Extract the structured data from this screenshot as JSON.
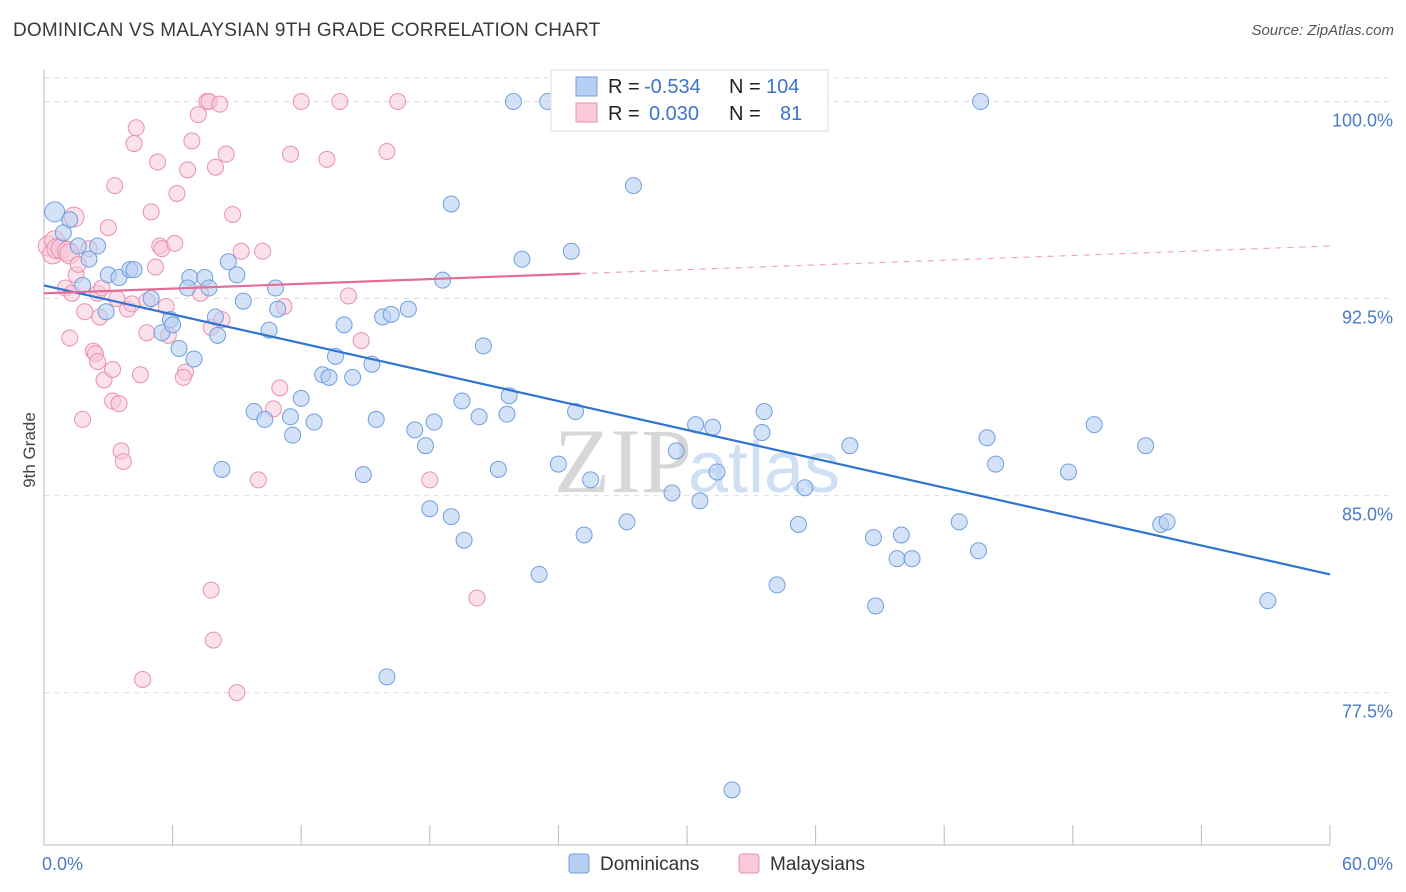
{
  "title": "DOMINICAN VS MALAYSIAN 9TH GRADE CORRELATION CHART",
  "source": "Source: ZipAtlas.com",
  "watermark": {
    "zip": "ZIP",
    "atlas": "atlas"
  },
  "colors": {
    "blue": "#6f9fe0",
    "blue_fill": "#b7cff2",
    "blue_line": "#2f74d0",
    "pink": "#ec8fb0",
    "pink_fill": "#f8c9d9",
    "pink_line": "#e56b98",
    "grid": "#dddddd",
    "axis_text": "#4a7cc8"
  },
  "legend_box": {
    "row1": {
      "r_label": "R =",
      "r_value": "-0.534",
      "n_label": "N =",
      "n_value": "104"
    },
    "row2": {
      "r_label": "R =",
      "r_value": "0.030",
      "n_label": "N =",
      "n_value": "81"
    }
  },
  "bottom_legend": {
    "series1": "Dominicans",
    "series2": "Malaysians"
  },
  "chart_data": {
    "type": "scatter",
    "xlabel": "",
    "ylabel": "9th Grade",
    "xlim": [
      0,
      60
    ],
    "ylim": [
      71.7,
      101.2
    ],
    "x_tick_labels": [
      {
        "value": 0,
        "label": "0.0%"
      },
      {
        "value": 60,
        "label": "60.0%"
      }
    ],
    "y_tick_labels": [
      {
        "value": 100,
        "label": "100.0%"
      },
      {
        "value": 92.5,
        "label": "92.5%"
      },
      {
        "value": 85,
        "label": "85.0%"
      },
      {
        "value": 77.5,
        "label": "77.5%"
      }
    ],
    "grid": true,
    "legend": "top-center",
    "series": [
      {
        "name": "Dominicans",
        "color": "#6f9fe0",
        "trend": {
          "x": [
            0,
            60
          ],
          "y": [
            93.0,
            82.0
          ],
          "solid_to": 60
        },
        "points": [
          [
            0.5,
            95.8
          ],
          [
            1.2,
            95.5
          ],
          [
            1.6,
            94.5
          ],
          [
            2.1,
            94.0
          ],
          [
            2.5,
            94.5
          ],
          [
            3.0,
            93.4
          ],
          [
            3.5,
            93.3
          ],
          [
            4.0,
            93.6
          ],
          [
            4.2,
            93.6
          ],
          [
            5.0,
            92.5
          ],
          [
            5.5,
            91.2
          ],
          [
            5.9,
            91.7
          ],
          [
            6.0,
            91.5
          ],
          [
            6.3,
            90.6
          ],
          [
            6.8,
            93.3
          ],
          [
            6.7,
            92.9
          ],
          [
            7.0,
            90.2
          ],
          [
            7.5,
            93.3
          ],
          [
            7.7,
            92.9
          ],
          [
            8.0,
            91.8
          ],
          [
            8.1,
            91.1
          ],
          [
            8.6,
            93.9
          ],
          [
            9.0,
            93.4
          ],
          [
            9.3,
            92.4
          ],
          [
            9.8,
            88.2
          ],
          [
            10.3,
            87.9
          ],
          [
            10.8,
            92.9
          ],
          [
            10.9,
            92.1
          ],
          [
            10.5,
            91.3
          ],
          [
            11.5,
            88.0
          ],
          [
            11.6,
            87.3
          ],
          [
            12.0,
            88.7
          ],
          [
            12.6,
            87.8
          ],
          [
            13.0,
            89.6
          ],
          [
            13.3,
            89.5
          ],
          [
            13.6,
            90.3
          ],
          [
            14.0,
            91.5
          ],
          [
            14.4,
            89.5
          ],
          [
            14.9,
            85.8
          ],
          [
            15.3,
            90.0
          ],
          [
            15.5,
            87.9
          ],
          [
            15.8,
            91.8
          ],
          [
            16.2,
            91.9
          ],
          [
            16.0,
            78.1
          ],
          [
            17.0,
            92.1
          ],
          [
            17.3,
            87.5
          ],
          [
            17.8,
            86.9
          ],
          [
            18.0,
            84.5
          ],
          [
            18.2,
            87.8
          ],
          [
            18.6,
            93.2
          ],
          [
            19.0,
            84.2
          ],
          [
            19.0,
            96.1
          ],
          [
            19.5,
            88.6
          ],
          [
            19.6,
            83.3
          ],
          [
            20.3,
            88.0
          ],
          [
            20.5,
            90.7
          ],
          [
            21.2,
            86.0
          ],
          [
            21.6,
            88.1
          ],
          [
            21.7,
            88.8
          ],
          [
            21.9,
            100.0
          ],
          [
            22.3,
            94.0
          ],
          [
            23.1,
            82.0
          ],
          [
            23.5,
            100.0
          ],
          [
            24.0,
            86.2
          ],
          [
            24.8,
            88.2
          ],
          [
            25.2,
            83.5
          ],
          [
            25.5,
            85.6
          ],
          [
            27.2,
            84.0
          ],
          [
            27.5,
            96.8
          ],
          [
            29.3,
            85.1
          ],
          [
            29.5,
            86.7
          ],
          [
            30.4,
            87.7
          ],
          [
            30.6,
            84.8
          ],
          [
            31.2,
            87.6
          ],
          [
            31.4,
            85.9
          ],
          [
            32.1,
            73.8
          ],
          [
            32.8,
            100.0
          ],
          [
            33.6,
            88.2
          ],
          [
            33.5,
            87.4
          ],
          [
            34.2,
            81.6
          ],
          [
            35.2,
            83.9
          ],
          [
            35.5,
            85.3
          ],
          [
            37.6,
            86.9
          ],
          [
            38.7,
            83.4
          ],
          [
            38.8,
            80.8
          ],
          [
            39.8,
            82.6
          ],
          [
            40.0,
            83.5
          ],
          [
            40.5,
            82.6
          ],
          [
            42.7,
            84.0
          ],
          [
            43.6,
            82.9
          ],
          [
            43.7,
            100.0
          ],
          [
            44.0,
            87.2
          ],
          [
            44.4,
            86.2
          ],
          [
            47.8,
            85.9
          ],
          [
            49.0,
            87.7
          ],
          [
            51.4,
            86.9
          ],
          [
            52.1,
            83.9
          ],
          [
            52.4,
            84.0
          ],
          [
            57.1,
            81.0
          ],
          [
            0.9,
            95.0
          ],
          [
            1.8,
            93.0
          ],
          [
            2.9,
            92.0
          ],
          [
            8.3,
            86.0
          ],
          [
            24.6,
            94.3
          ]
        ]
      },
      {
        "name": "Malaysians",
        "color": "#ec8fb0",
        "trend": {
          "x": [
            0,
            60
          ],
          "y": [
            92.7,
            94.5
          ],
          "solid_to": 25
        },
        "points": [
          [
            0.2,
            94.5
          ],
          [
            0.4,
            94.2
          ],
          [
            0.5,
            94.7
          ],
          [
            0.6,
            94.4
          ],
          [
            0.8,
            94.4
          ],
          [
            1.1,
            94.3
          ],
          [
            1.2,
            94.2
          ],
          [
            1.4,
            95.6
          ],
          [
            1.0,
            92.9
          ],
          [
            1.3,
            92.7
          ],
          [
            1.2,
            91.0
          ],
          [
            1.5,
            93.4
          ],
          [
            1.6,
            93.8
          ],
          [
            1.9,
            92.0
          ],
          [
            1.8,
            87.9
          ],
          [
            2.1,
            94.4
          ],
          [
            2.3,
            90.5
          ],
          [
            2.4,
            90.4
          ],
          [
            2.5,
            90.1
          ],
          [
            2.5,
            92.7
          ],
          [
            2.6,
            91.8
          ],
          [
            2.7,
            92.9
          ],
          [
            2.8,
            89.4
          ],
          [
            3.0,
            95.2
          ],
          [
            3.2,
            89.8
          ],
          [
            3.2,
            88.6
          ],
          [
            3.3,
            96.8
          ],
          [
            3.4,
            92.5
          ],
          [
            3.5,
            88.5
          ],
          [
            3.6,
            86.7
          ],
          [
            3.7,
            86.3
          ],
          [
            3.9,
            92.1
          ],
          [
            4.1,
            92.3
          ],
          [
            4.3,
            99.0
          ],
          [
            4.2,
            98.4
          ],
          [
            4.5,
            89.6
          ],
          [
            4.6,
            78.0
          ],
          [
            4.8,
            92.4
          ],
          [
            4.8,
            91.2
          ],
          [
            5.0,
            95.8
          ],
          [
            5.2,
            93.7
          ],
          [
            5.3,
            97.7
          ],
          [
            5.4,
            94.5
          ],
          [
            5.5,
            94.4
          ],
          [
            5.7,
            92.2
          ],
          [
            5.8,
            91.1
          ],
          [
            6.1,
            94.6
          ],
          [
            6.2,
            96.5
          ],
          [
            6.6,
            89.7
          ],
          [
            6.5,
            89.5
          ],
          [
            6.7,
            97.4
          ],
          [
            6.9,
            98.5
          ],
          [
            7.2,
            99.5
          ],
          [
            7.3,
            92.7
          ],
          [
            7.6,
            100.0
          ],
          [
            7.7,
            100.0
          ],
          [
            7.8,
            81.4
          ],
          [
            7.8,
            91.4
          ],
          [
            7.9,
            79.5
          ],
          [
            8.0,
            97.5
          ],
          [
            8.2,
            99.9
          ],
          [
            8.3,
            91.7
          ],
          [
            8.5,
            98.0
          ],
          [
            8.8,
            95.7
          ],
          [
            9.0,
            77.5
          ],
          [
            9.2,
            94.3
          ],
          [
            10.0,
            85.6
          ],
          [
            10.2,
            94.3
          ],
          [
            10.7,
            88.3
          ],
          [
            11.0,
            89.1
          ],
          [
            11.2,
            92.2
          ],
          [
            11.5,
            98.0
          ],
          [
            12.0,
            100.0
          ],
          [
            13.2,
            97.8
          ],
          [
            13.8,
            100.0
          ],
          [
            14.2,
            92.6
          ],
          [
            14.8,
            90.9
          ],
          [
            16.0,
            98.1
          ],
          [
            16.5,
            100.0
          ],
          [
            18.0,
            85.6
          ],
          [
            20.2,
            81.1
          ]
        ]
      }
    ]
  }
}
